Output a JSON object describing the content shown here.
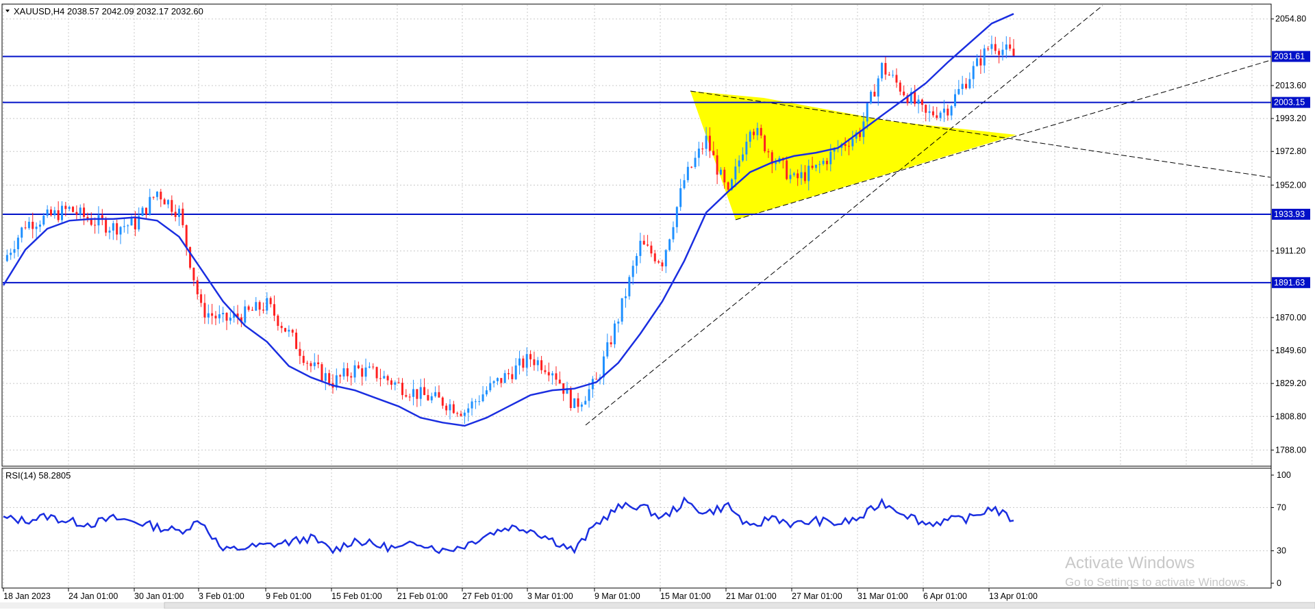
{
  "window": {
    "symbol_header": "XAUUSD,H4  2038.57 2042.09 2032.17 2032.60",
    "rsi_header": "RSI(14) 58.2805"
  },
  "colors": {
    "candle_up": "#1e90ff",
    "candle_down": "#ff2020",
    "ma_line": "#1a2ee0",
    "level_line": "#0010c8",
    "triangle_fill": "#ffff00",
    "rsi_line": "#1a2ee0",
    "grid": "#c8c8c8"
  },
  "price_axis": {
    "min": 1778.0,
    "max": 2064.0,
    "ticks": [
      "2054.80",
      "2013.60",
      "1993.20",
      "1972.80",
      "1952.00",
      "1911.20",
      "1870.00",
      "1849.60",
      "1829.20",
      "1808.80",
      "1788.00"
    ]
  },
  "levels": [
    {
      "label": "2031.61",
      "value": 2031.61
    },
    {
      "label": "2003.15",
      "value": 2003.15
    },
    {
      "label": "1933.93",
      "value": 1933.93
    },
    {
      "label": "1891.63",
      "value": 1891.63
    }
  ],
  "time_axis": {
    "labels": [
      "18 Jan 2023",
      "24 Jan 01:00",
      "30 Jan 01:00",
      "3 Feb 01:00",
      "9 Feb 01:00",
      "15 Feb 01:00",
      "21 Feb 01:00",
      "27 Feb 01:00",
      "3 Mar 01:00",
      "9 Mar 01:00",
      "15 Mar 01:00",
      "21 Mar 01:00",
      "27 Mar 01:00",
      "31 Mar 01:00",
      "6 Apr 01:00",
      "13 Apr 01:00"
    ]
  },
  "rsi_axis": {
    "ticks": [
      "100",
      "70",
      "30",
      "0"
    ]
  },
  "watermark": {
    "line1": "Activate Windows",
    "line2": "Go to Settings to activate Windows."
  },
  "chart_data": {
    "type": "line",
    "series": [
      {
        "kind": "candles-close",
        "x": [
          "18 Jan",
          "20 Jan",
          "22 Jan",
          "24 Jan",
          "26 Jan",
          "28 Jan",
          "30 Jan",
          "1 Feb",
          "2 Feb",
          "3 Feb",
          "5 Feb",
          "7 Feb",
          "9 Feb",
          "11 Feb",
          "13 Feb",
          "15 Feb",
          "17 Feb",
          "19 Feb",
          "21 Feb",
          "23 Feb",
          "25 Feb",
          "27 Feb",
          "1 Mar",
          "3 Mar",
          "5 Mar",
          "7 Mar",
          "8 Mar",
          "9 Mar",
          "11 Mar",
          "13 Mar",
          "15 Mar",
          "17 Mar",
          "19 Mar",
          "21 Mar",
          "23 Mar",
          "25 Mar",
          "27 Mar",
          "29 Mar",
          "31 Mar",
          "2 Apr",
          "4 Apr",
          "6 Apr",
          "8 Apr",
          "10 Apr",
          "12 Apr",
          "13 Apr",
          "14 Apr"
        ],
        "values": [
          1905,
          1928,
          1932,
          1937,
          1930,
          1926,
          1928,
          1948,
          1935,
          1875,
          1868,
          1872,
          1878,
          1860,
          1840,
          1830,
          1838,
          1835,
          1828,
          1822,
          1818,
          1812,
          1825,
          1835,
          1845,
          1838,
          1815,
          1830,
          1870,
          1915,
          1905,
          1955,
          1980,
          1945,
          1990,
          1970,
          1955,
          1962,
          1975,
          1985,
          2025,
          2010,
          1995,
          2000,
          2020,
          2040,
          2032
        ]
      },
      {
        "kind": "moving-average",
        "values": [
          1890,
          1912,
          1925,
          1930,
          1931,
          1931,
          1932,
          1930,
          1920,
          1900,
          1880,
          1865,
          1855,
          1840,
          1833,
          1828,
          1825,
          1820,
          1815,
          1808,
          1805,
          1803,
          1808,
          1815,
          1822,
          1825,
          1826,
          1830,
          1842,
          1860,
          1880,
          1905,
          1935,
          1948,
          1960,
          1966,
          1970,
          1972,
          1975,
          1985,
          1995,
          2005,
          2015,
          2028,
          2040,
          2052,
          2058
        ]
      }
    ],
    "rsi": [
      60,
      58,
      62,
      57,
      55,
      60,
      57,
      52,
      48,
      58,
      30,
      33,
      35,
      38,
      42,
      30,
      40,
      35,
      32,
      38,
      30,
      35,
      45,
      52,
      50,
      40,
      30,
      55,
      70,
      72,
      60,
      75,
      65,
      72,
      50,
      62,
      54,
      58,
      55,
      60,
      75,
      65,
      55,
      58,
      60,
      70,
      58
    ],
    "ylim": [
      1778,
      2064
    ]
  }
}
